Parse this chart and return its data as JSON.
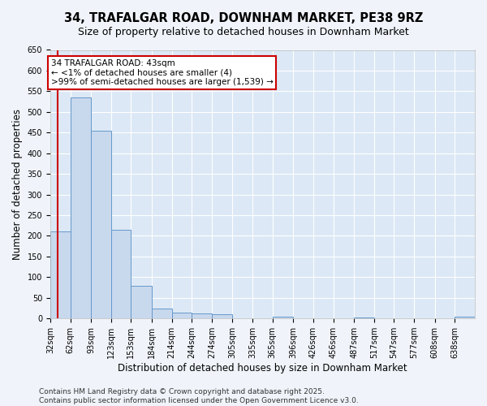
{
  "title1": "34, TRAFALGAR ROAD, DOWNHAM MARKET, PE38 9RZ",
  "title2": "Size of property relative to detached houses in Downham Market",
  "xlabel": "Distribution of detached houses by size in Downham Market",
  "ylabel": "Number of detached properties",
  "bin_labels": [
    "32sqm",
    "62sqm",
    "93sqm",
    "123sqm",
    "153sqm",
    "184sqm",
    "214sqm",
    "244sqm",
    "274sqm",
    "305sqm",
    "335sqm",
    "365sqm",
    "396sqm",
    "426sqm",
    "456sqm",
    "487sqm",
    "517sqm",
    "547sqm",
    "577sqm",
    "608sqm",
    "638sqm"
  ],
  "bin_edges": [
    32,
    62,
    93,
    123,
    153,
    184,
    214,
    244,
    274,
    305,
    335,
    365,
    396,
    426,
    456,
    487,
    517,
    547,
    577,
    608,
    638
  ],
  "bar_heights": [
    210,
    535,
    455,
    215,
    80,
    25,
    15,
    12,
    10,
    0,
    0,
    5,
    0,
    0,
    0,
    3,
    0,
    0,
    0,
    0,
    5
  ],
  "bar_color": "#c8d8ed",
  "bar_edge_color": "#6699cc",
  "property_size": 43,
  "annotation_line1": "34 TRAFALGAR ROAD: 43sqm",
  "annotation_line2": "← <1% of detached houses are smaller (4)",
  "annotation_line3": ">99% of semi-detached houses are larger (1,539) →",
  "annotation_box_color": "#ffffff",
  "annotation_border_color": "#cc0000",
  "vline_color": "#cc0000",
  "ylim": [
    0,
    650
  ],
  "yticks": [
    0,
    50,
    100,
    150,
    200,
    250,
    300,
    350,
    400,
    450,
    500,
    550,
    600,
    650
  ],
  "plot_bg_color": "#dce8f5",
  "fig_bg_color": "#f0f4fa",
  "grid_color": "#ffffff",
  "footer_text": "Contains HM Land Registry data © Crown copyright and database right 2025.\nContains public sector information licensed under the Open Government Licence v3.0.",
  "title_fontsize": 10.5,
  "subtitle_fontsize": 9,
  "axis_label_fontsize": 8.5,
  "tick_fontsize": 7,
  "annotation_fontsize": 7.5,
  "footer_fontsize": 6.5
}
